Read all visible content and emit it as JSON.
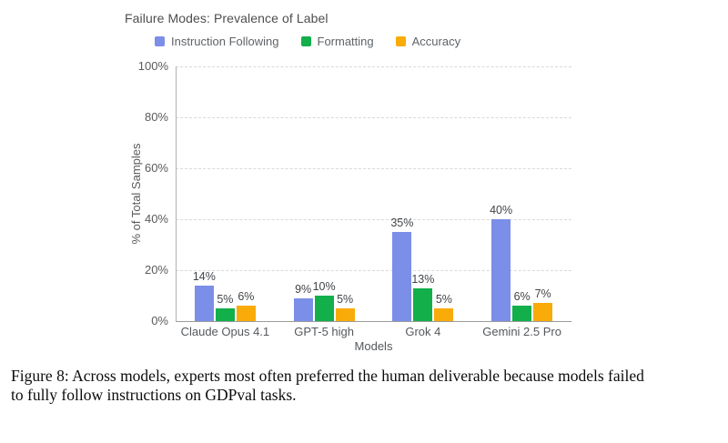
{
  "chart_data": {
    "type": "bar",
    "title": "Failure Modes: Prevalence of Label",
    "categories": [
      "Claude Opus 4.1",
      "GPT-5 high",
      "Grok 4",
      "Gemini 2.5 Pro"
    ],
    "series": [
      {
        "name": "Instruction Following",
        "color": "#7b8ee8",
        "values": [
          14,
          9,
          35,
          40
        ]
      },
      {
        "name": "Formatting",
        "color": "#12af4b",
        "values": [
          5,
          10,
          13,
          6
        ]
      },
      {
        "name": "Accuracy",
        "color": "#f9ab0a",
        "values": [
          6,
          5,
          5,
          7
        ]
      }
    ],
    "value_suffix": "%",
    "xlabel": "Models",
    "ylabel": "% of Total Samples",
    "ylim": [
      0,
      100
    ],
    "ytick_values": [
      0,
      20,
      40,
      60,
      80,
      100
    ],
    "ytick_labels": [
      "0%",
      "20%",
      "40%",
      "60%",
      "80%",
      "100%"
    ],
    "grid": "horizontal-dashed",
    "legend_position": "top",
    "value_labels": "above-bars"
  },
  "caption": {
    "line1": "Figure 8: Across models, experts most often preferred the human deliverable because models failed",
    "line2": "to fully follow instructions on GDPval tasks."
  }
}
